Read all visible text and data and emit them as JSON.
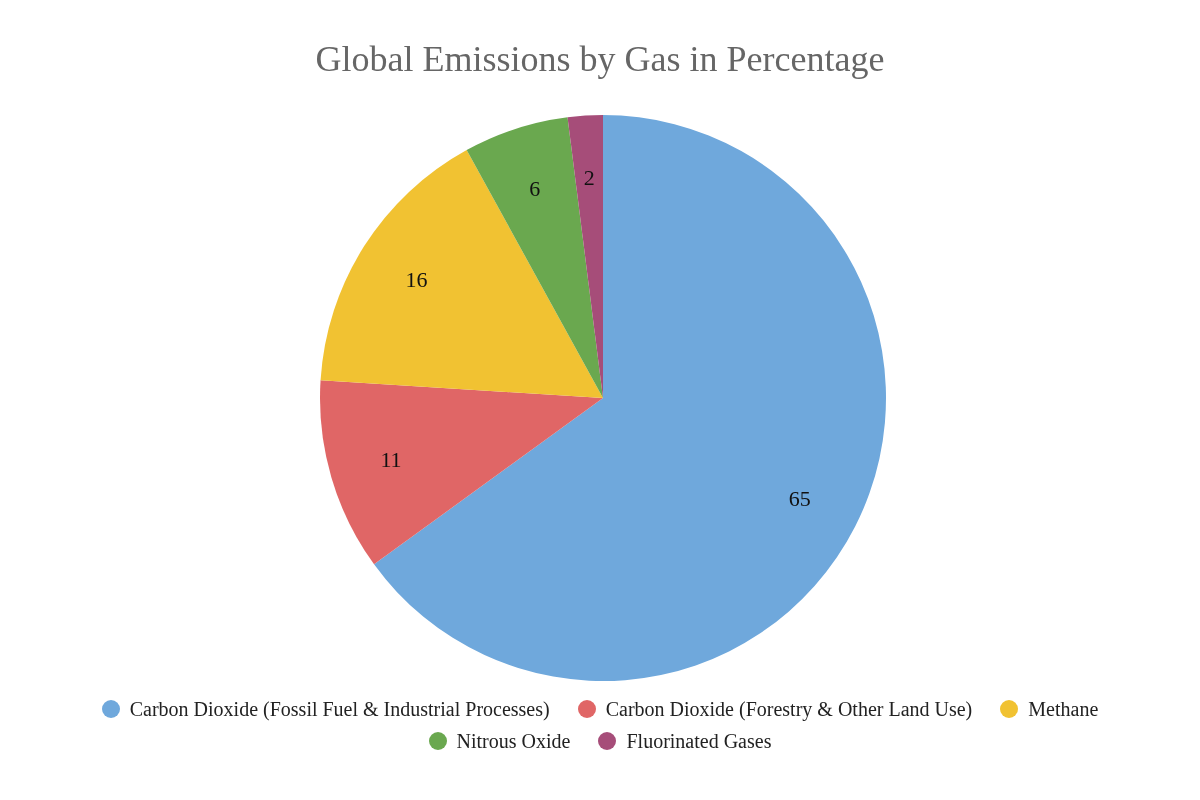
{
  "chart_data": {
    "type": "pie",
    "title": "Global Emissions by Gas in Percentage",
    "categories": [
      "Carbon Dioxide (Fossil Fuel & Industrial Processes)",
      "Carbon Dioxide (Forestry & Other Land Use)",
      "Methane",
      "Nitrous Oxide",
      "Fluorinated Gases"
    ],
    "values": [
      65,
      11,
      16,
      6,
      2
    ],
    "colors": [
      "#6fa8dc",
      "#e06666",
      "#f1c232",
      "#6aa84f",
      "#a64d79"
    ],
    "data_labels": true,
    "legend": "bottom"
  }
}
